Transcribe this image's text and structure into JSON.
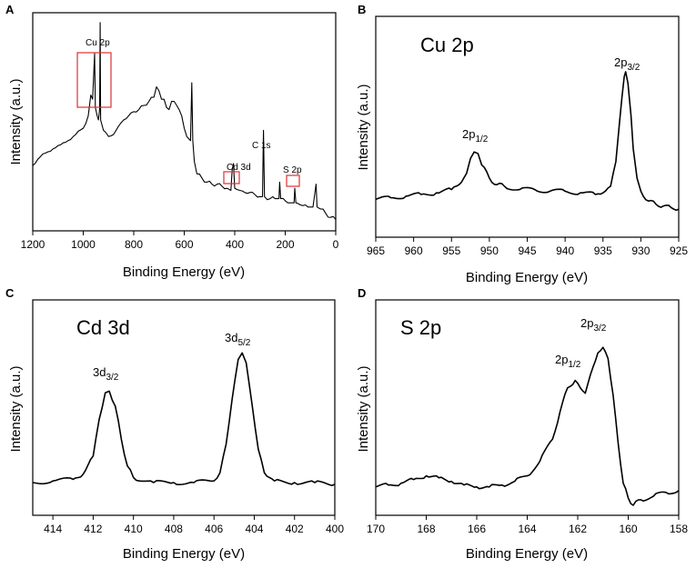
{
  "chart_data": [
    {
      "panel": "A",
      "type": "line",
      "title": "",
      "xlabel": "Binding Energy (eV)",
      "ylabel": "Intensity (a.u.)",
      "xlim": [
        1200,
        0
      ],
      "xticks": [
        1200,
        1000,
        800,
        600,
        400,
        200,
        0
      ],
      "annotations": [
        "Cu 2p",
        "Cd 3d",
        "C 1s",
        "S 2p"
      ],
      "series": [
        {
          "name": "survey",
          "points": [
            [
              1200,
              0.28
            ],
            [
              1180,
              0.31
            ],
            [
              1150,
              0.34
            ],
            [
              1120,
              0.36
            ],
            [
              1090,
              0.38
            ],
            [
              1060,
              0.4
            ],
            [
              1030,
              0.43
            ],
            [
              1000,
              0.46
            ],
            [
              980,
              0.52
            ],
            [
              970,
              0.62
            ],
            [
              963,
              0.6
            ],
            [
              955,
              0.82
            ],
            [
              952,
              0.56
            ],
            [
              945,
              0.52
            ],
            [
              940,
              0.5
            ],
            [
              935,
              0.55
            ],
            [
              933,
              0.97
            ],
            [
              931,
              0.5
            ],
            [
              920,
              0.45
            ],
            [
              900,
              0.42
            ],
            [
              880,
              0.43
            ],
            [
              860,
              0.47
            ],
            [
              840,
              0.5
            ],
            [
              820,
              0.52
            ],
            [
              800,
              0.54
            ],
            [
              780,
              0.55
            ],
            [
              760,
              0.57
            ],
            [
              740,
              0.59
            ],
            [
              720,
              0.61
            ],
            [
              710,
              0.66
            ],
            [
              700,
              0.64
            ],
            [
              690,
              0.6
            ],
            [
              680,
              0.6
            ],
            [
              670,
              0.56
            ],
            [
              660,
              0.55
            ],
            [
              650,
              0.59
            ],
            [
              640,
              0.59
            ],
            [
              630,
              0.57
            ],
            [
              620,
              0.55
            ],
            [
              610,
              0.52
            ],
            [
              600,
              0.46
            ],
            [
              590,
              0.42
            ],
            [
              575,
              0.4
            ],
            [
              570,
              0.68
            ],
            [
              566,
              0.4
            ],
            [
              560,
              0.3
            ],
            [
              550,
              0.24
            ],
            [
              530,
              0.22
            ],
            [
              510,
              0.2
            ],
            [
              490,
              0.19
            ],
            [
              470,
              0.19
            ],
            [
              450,
              0.18
            ],
            [
              430,
              0.17
            ],
            [
              415,
              0.16
            ],
            [
              410,
              0.26
            ],
            [
              405,
              0.29
            ],
            [
              400,
              0.17
            ],
            [
              380,
              0.16
            ],
            [
              360,
              0.15
            ],
            [
              340,
              0.15
            ],
            [
              320,
              0.14
            ],
            [
              300,
              0.13
            ],
            [
              290,
              0.13
            ],
            [
              286,
              0.45
            ],
            [
              282,
              0.13
            ],
            [
              260,
              0.12
            ],
            [
              240,
              0.12
            ],
            [
              225,
              0.12
            ],
            [
              222,
              0.2
            ],
            [
              218,
              0.12
            ],
            [
              200,
              0.11
            ],
            [
              180,
              0.1
            ],
            [
              165,
              0.1
            ],
            [
              162,
              0.17
            ],
            [
              158,
              0.1
            ],
            [
              140,
              0.09
            ],
            [
              120,
              0.09
            ],
            [
              110,
              0.08
            ],
            [
              100,
              0.08
            ],
            [
              90,
              0.08
            ],
            [
              78,
              0.19
            ],
            [
              74,
              0.08
            ],
            [
              60,
              0.07
            ],
            [
              40,
              0.05
            ],
            [
              20,
              0.03
            ],
            [
              0,
              0.02
            ]
          ]
        }
      ]
    },
    {
      "panel": "B",
      "type": "line",
      "title": "Cu 2p",
      "xlabel": "Binding Energy (eV)",
      "ylabel": "Intensity (a.u.)",
      "xlim": [
        965,
        925
      ],
      "xticks": [
        965,
        960,
        955,
        950,
        945,
        940,
        935,
        930,
        925
      ],
      "annotations": [
        "2p1/2",
        "2p3/2"
      ],
      "peaks": [
        {
          "label": "2p1/2",
          "x": 952
        },
        {
          "label": "2p3/2",
          "x": 932
        }
      ],
      "series": [
        {
          "name": "Cu 2p",
          "points": [
            [
              965,
              0.17
            ],
            [
              963,
              0.18
            ],
            [
              961,
              0.19
            ],
            [
              959,
              0.2
            ],
            [
              957,
              0.21
            ],
            [
              955,
              0.23
            ],
            [
              954,
              0.26
            ],
            [
              953,
              0.33
            ],
            [
              952.5,
              0.42
            ],
            [
              952,
              0.46
            ],
            [
              951.5,
              0.45
            ],
            [
              951,
              0.38
            ],
            [
              950,
              0.3
            ],
            [
              949,
              0.26
            ],
            [
              948,
              0.25
            ],
            [
              946,
              0.23
            ],
            [
              944,
              0.23
            ],
            [
              942,
              0.22
            ],
            [
              940,
              0.22
            ],
            [
              938,
              0.21
            ],
            [
              936,
              0.2
            ],
            [
              935,
              0.21
            ],
            [
              934,
              0.25
            ],
            [
              933.3,
              0.4
            ],
            [
              932.8,
              0.65
            ],
            [
              932.2,
              0.92
            ],
            [
              932,
              0.95
            ],
            [
              931.7,
              0.88
            ],
            [
              931.3,
              0.68
            ],
            [
              931,
              0.48
            ],
            [
              930.5,
              0.3
            ],
            [
              930,
              0.22
            ],
            [
              929,
              0.16
            ],
            [
              928,
              0.14
            ],
            [
              927,
              0.13
            ],
            [
              926,
              0.12
            ],
            [
              925,
              0.11
            ]
          ]
        }
      ]
    },
    {
      "panel": "C",
      "type": "line",
      "title": "Cd 3d",
      "xlabel": "Binding Energy (eV)",
      "ylabel": "Intensity (a.u.)",
      "xlim": [
        415,
        400
      ],
      "xticks": [
        414,
        412,
        410,
        408,
        406,
        404,
        402,
        400
      ],
      "annotations": [
        "3d3/2",
        "3d5/2"
      ],
      "peaks": [
        {
          "label": "3d3/2",
          "x": 411.3
        },
        {
          "label": "3d5/2",
          "x": 404.6
        }
      ],
      "series": [
        {
          "name": "Cd 3d",
          "points": [
            [
              415,
              0.12
            ],
            [
              414,
              0.13
            ],
            [
              413,
              0.14
            ],
            [
              412.5,
              0.17
            ],
            [
              412,
              0.28
            ],
            [
              411.7,
              0.5
            ],
            [
              411.4,
              0.66
            ],
            [
              411.2,
              0.67
            ],
            [
              410.9,
              0.58
            ],
            [
              410.6,
              0.38
            ],
            [
              410.3,
              0.22
            ],
            [
              410,
              0.15
            ],
            [
              409,
              0.12
            ],
            [
              408,
              0.12
            ],
            [
              407,
              0.12
            ],
            [
              406,
              0.13
            ],
            [
              405.7,
              0.18
            ],
            [
              405.4,
              0.35
            ],
            [
              405.1,
              0.62
            ],
            [
              404.8,
              0.86
            ],
            [
              404.6,
              0.9
            ],
            [
              404.4,
              0.84
            ],
            [
              404.1,
              0.58
            ],
            [
              403.8,
              0.32
            ],
            [
              403.5,
              0.18
            ],
            [
              403,
              0.13
            ],
            [
              402,
              0.12
            ],
            [
              401,
              0.12
            ],
            [
              400,
              0.11
            ]
          ]
        }
      ]
    },
    {
      "panel": "D",
      "type": "line",
      "title": "S 2p",
      "xlabel": "Binding Energy (eV)",
      "ylabel": "Intensity (a.u.)",
      "xlim": [
        170,
        158
      ],
      "xticks": [
        170,
        168,
        166,
        164,
        162,
        160,
        158
      ],
      "annotations": [
        "2p1/2",
        "2p3/2"
      ],
      "peaks": [
        {
          "label": "2p1/2",
          "x": 162.1
        },
        {
          "label": "2p3/2",
          "x": 161
        }
      ],
      "series": [
        {
          "name": "S 2p",
          "points": [
            [
              170,
              0.12
            ],
            [
              169.5,
              0.13
            ],
            [
              169,
              0.14
            ],
            [
              168.5,
              0.16
            ],
            [
              168,
              0.18
            ],
            [
              167.5,
              0.17
            ],
            [
              167,
              0.15
            ],
            [
              166.5,
              0.13
            ],
            [
              166,
              0.12
            ],
            [
              165.5,
              0.12
            ],
            [
              165,
              0.13
            ],
            [
              164.5,
              0.15
            ],
            [
              164,
              0.18
            ],
            [
              163.5,
              0.26
            ],
            [
              163,
              0.38
            ],
            [
              162.7,
              0.53
            ],
            [
              162.4,
              0.66
            ],
            [
              162.1,
              0.7
            ],
            [
              161.9,
              0.66
            ],
            [
              161.7,
              0.63
            ],
            [
              161.5,
              0.73
            ],
            [
              161.2,
              0.85
            ],
            [
              161,
              0.88
            ],
            [
              160.8,
              0.82
            ],
            [
              160.6,
              0.62
            ],
            [
              160.4,
              0.36
            ],
            [
              160.2,
              0.14
            ],
            [
              160,
              0.06
            ],
            [
              159.8,
              0.02
            ],
            [
              159.5,
              0.05
            ],
            [
              159,
              0.07
            ],
            [
              158.5,
              0.09
            ],
            [
              158,
              0.1
            ]
          ]
        }
      ]
    }
  ],
  "labels": {
    "a": {
      "letter": "A",
      "cu": "Cu 2p",
      "cd": "Cd 3d",
      "c": "C 1s",
      "s": "S 2p"
    },
    "b": {
      "letter": "B",
      "title": "Cu 2p",
      "p1": "2p",
      "p1sub": "1/2",
      "p2": "2p",
      "p2sub": "3/2"
    },
    "c": {
      "letter": "C",
      "title": "Cd 3d",
      "p1": "3d",
      "p1sub": "3/2",
      "p2": "3d",
      "p2sub": "5/2"
    },
    "d": {
      "letter": "D",
      "title": "S 2p",
      "p1": "2p",
      "p1sub": "1/2",
      "p2": "2p",
      "p2sub": "3/2"
    }
  },
  "colors": {
    "line": "#000000",
    "box": "#e03030"
  }
}
